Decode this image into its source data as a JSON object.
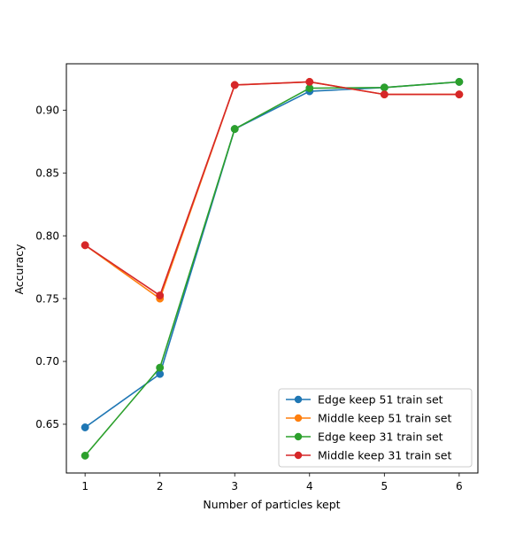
{
  "chart_data": {
    "type": "line",
    "title": "",
    "xlabel": "Number of particles kept",
    "ylabel": "Accuracy",
    "x": [
      1,
      2,
      3,
      4,
      5,
      6
    ],
    "x_ticks": [
      "1",
      "2",
      "3",
      "4",
      "5",
      "6"
    ],
    "y_ticks": [
      "0.65",
      "0.70",
      "0.75",
      "0.80",
      "0.85",
      "0.90"
    ],
    "xlim": [
      0.75,
      6.25
    ],
    "ylim": [
      0.6112,
      0.9369
    ],
    "grid": false,
    "legend_position": "lower-right",
    "series": [
      {
        "name": "Edge keep 51 train set",
        "color": "#1f77b4",
        "values": [
          0.6475,
          0.69,
          0.885,
          0.915,
          0.918,
          0.9225
        ]
      },
      {
        "name": "Middle keep 51 train set",
        "color": "#ff7f0e",
        "values": [
          0.7925,
          0.75,
          0.92,
          0.9225,
          0.9125,
          0.9125
        ]
      },
      {
        "name": "Edge keep 31 train set",
        "color": "#2ca02c",
        "values": [
          0.625,
          0.695,
          0.885,
          0.9175,
          0.918,
          0.9225
        ]
      },
      {
        "name": "Middle keep 31 train set",
        "color": "#d62728",
        "values": [
          0.7925,
          0.7525,
          0.92,
          0.9225,
          0.9125,
          0.9125
        ]
      }
    ]
  }
}
